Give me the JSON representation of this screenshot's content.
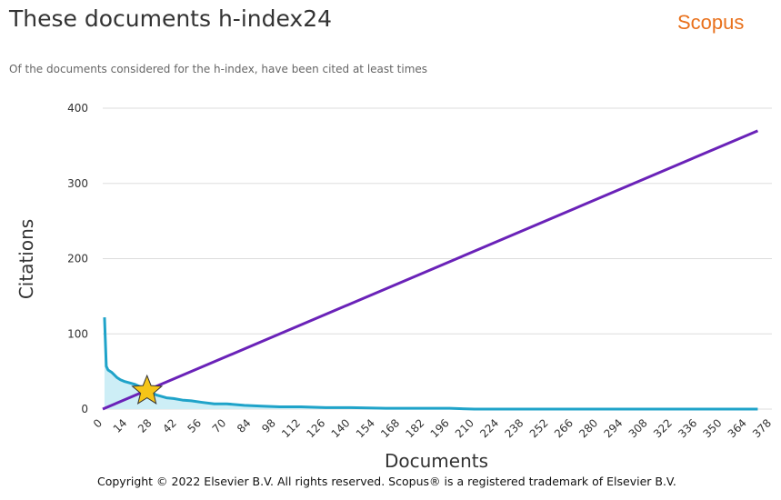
{
  "header": {
    "title": "These documents h-index24",
    "brand": "Scopus",
    "subtitle": "Of the documents considered for the h-index, have been cited at least times"
  },
  "footer": {
    "copyright": "Copyright © 2022 Elsevier B.V. All rights reserved. Scopus® is a registered trademark of Elsevier B.V."
  },
  "colors": {
    "citations_line": "#1fa3c9",
    "citations_fill": "#cdeef6",
    "reference_line": "#6a22b8",
    "star": "#f5c518",
    "grid": "#dddddd",
    "brand": "#e9711c"
  },
  "chart_data": {
    "type": "area",
    "xlabel": "Documents",
    "ylabel": "Citations",
    "xlim": [
      0,
      378
    ],
    "ylim": [
      0,
      400
    ],
    "x_ticks": [
      0,
      14,
      28,
      42,
      56,
      70,
      84,
      98,
      112,
      126,
      140,
      154,
      168,
      182,
      196,
      210,
      224,
      238,
      252,
      266,
      280,
      294,
      308,
      322,
      336,
      350,
      364,
      378
    ],
    "y_ticks": [
      0,
      100,
      200,
      300,
      400
    ],
    "grid": true,
    "series": [
      {
        "kind": "area",
        "x": [
          1,
          2,
          3,
          5,
          8,
          10,
          12,
          15,
          18,
          20,
          22,
          24,
          26,
          28,
          30,
          33,
          36,
          40,
          45,
          50,
          56,
          63,
          70,
          80,
          90,
          100,
          112,
          126,
          140,
          160,
          180,
          196,
          210,
          250,
          300,
          370
        ],
        "y": [
          122,
          57,
          52,
          49,
          42,
          39,
          37,
          35,
          33,
          31,
          29,
          26,
          24,
          22,
          19,
          17,
          15,
          14,
          12,
          11,
          9,
          7,
          7,
          5,
          4,
          3,
          3,
          2,
          2,
          1,
          1,
          1,
          0,
          0,
          0,
          0
        ]
      },
      {
        "kind": "line",
        "x": [
          0,
          370
        ],
        "y": [
          0,
          370
        ]
      }
    ],
    "h_index": 24,
    "h_index_point": {
      "x": 24,
      "y": 24
    }
  }
}
